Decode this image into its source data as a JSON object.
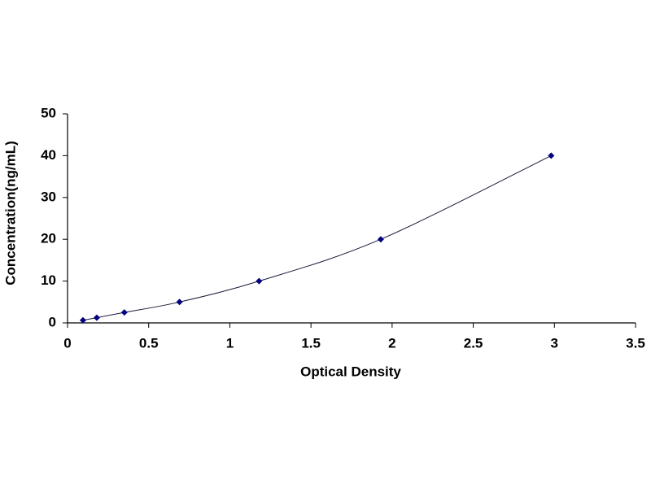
{
  "chart_data": {
    "type": "scatter",
    "x_label": "Optical Density",
    "y_label": "Concentration(ng/mL)",
    "x": [
      0.095,
      0.18,
      0.35,
      0.69,
      1.18,
      1.93,
      2.98
    ],
    "values": [
      0.625,
      1.25,
      2.5,
      5,
      10,
      20,
      40
    ],
    "color": "#000080",
    "line": true,
    "grid": false,
    "xlim": [
      0,
      3.5
    ],
    "xticks": [
      0,
      0.5,
      1,
      1.5,
      2,
      2.5,
      3,
      3.5
    ],
    "ylim": [
      0,
      50
    ],
    "yticks": [
      0,
      10,
      20,
      30,
      40,
      50
    ]
  }
}
